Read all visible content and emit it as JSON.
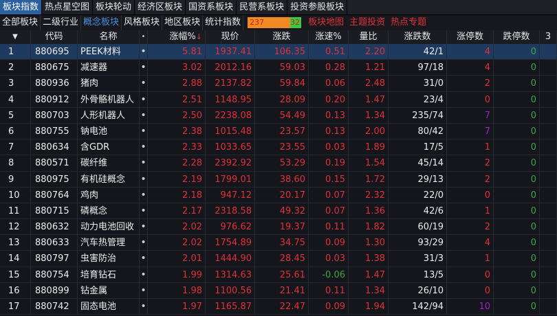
{
  "top_tabs": [
    "板块指数",
    "热点星空图",
    "板块轮动",
    "经济区板块",
    "国资系板块",
    "民营系板块",
    "投资参股板块"
  ],
  "sub_tabs": [
    "全部板块",
    "二级行业",
    "概念板块",
    "风格板块",
    "地区板块",
    "统计指数"
  ],
  "ratio": {
    "up": "237",
    "down": "32"
  },
  "links": [
    "板块地图",
    "主题投资",
    "热点专题"
  ],
  "columns": {
    "sort": "▼",
    "code": "代码",
    "name": "名称",
    "dot": "•",
    "pct": "涨幅%",
    "price": "现价",
    "chg": "涨跌",
    "speed": "涨速%",
    "vol_ratio": "量比",
    "updown": "涨跌数",
    "limit_up": "涨停数",
    "limit_down": "跌停数",
    "more": "3"
  },
  "colors": {
    "up": "#e0303a",
    "down": "#3aa54a",
    "highlight": "#9a22c8",
    "selected_row": "#1f3a5f",
    "active_tab": "#2b5f9e"
  },
  "rows": [
    [
      "1",
      "880695",
      "PEEK材料",
      "5.81",
      "1937.41",
      "106.35",
      "0.51",
      "2.20",
      "42/1",
      "4",
      "0"
    ],
    [
      "2",
      "880675",
      "减速器",
      "3.02",
      "2012.16",
      "59.03",
      "0.28",
      "1.21",
      "97/18",
      "4",
      "0"
    ],
    [
      "3",
      "880936",
      "猪肉",
      "2.88",
      "2137.82",
      "59.84",
      "0.06",
      "2.48",
      "31/0",
      "2",
      "0"
    ],
    [
      "4",
      "880912",
      "外骨骼机器人",
      "2.51",
      "1148.95",
      "28.09",
      "0.20",
      "1.47",
      "23/4",
      "0",
      "0"
    ],
    [
      "5",
      "880703",
      "人形机器人",
      "2.50",
      "2238.08",
      "54.49",
      "0.13",
      "1.34",
      "235/74",
      "7",
      "0"
    ],
    [
      "6",
      "880755",
      "钠电池",
      "2.38",
      "1015.48",
      "23.57",
      "0.13",
      "2.00",
      "80/42",
      "7",
      "0"
    ],
    [
      "7",
      "880634",
      "含GDR",
      "2.33",
      "1033.65",
      "23.55",
      "0.03",
      "1.89",
      "17/5",
      "1",
      "0"
    ],
    [
      "8",
      "880571",
      "碳纤维",
      "2.28",
      "2392.92",
      "53.29",
      "0.19",
      "1.54",
      "45/14",
      "2",
      "0"
    ],
    [
      "9",
      "880975",
      "有机硅概念",
      "2.19",
      "1799.01",
      "38.60",
      "0.15",
      "1.72",
      "29/13",
      "2",
      "0"
    ],
    [
      "10",
      "880764",
      "鸡肉",
      "2.18",
      "947.12",
      "20.17",
      "0.07",
      "2.32",
      "22/0",
      "0",
      "0"
    ],
    [
      "11",
      "880715",
      "磷概念",
      "2.17",
      "2318.58",
      "49.32",
      "0.07",
      "1.36",
      "42/6",
      "1",
      "0"
    ],
    [
      "12",
      "880632",
      "动力电池回收",
      "2.02",
      "976.62",
      "19.37",
      "0.11",
      "1.82",
      "60/19",
      "2",
      "0"
    ],
    [
      "13",
      "880633",
      "汽车热管理",
      "2.02",
      "1754.89",
      "34.75",
      "0.09",
      "1.30",
      "93/29",
      "4",
      "0"
    ],
    [
      "14",
      "880797",
      "虫害防治",
      "2.01",
      "1444.90",
      "28.45",
      "0.03",
      "1.38",
      "31/3",
      "1",
      "0"
    ],
    [
      "15",
      "880754",
      "培育钻石",
      "1.99",
      "1314.63",
      "25.61",
      "-0.06",
      "1.47",
      "13/5",
      "0",
      "0"
    ],
    [
      "16",
      "880899",
      "钻金属",
      "1.98",
      "1100.56",
      "21.41",
      "0.11",
      "1.34",
      "26/10",
      "0",
      "0"
    ],
    [
      "17",
      "880742",
      "固态电池",
      "1.97",
      "1165.87",
      "22.47",
      "0.09",
      "1.94",
      "142/94",
      "10",
      "0"
    ]
  ]
}
